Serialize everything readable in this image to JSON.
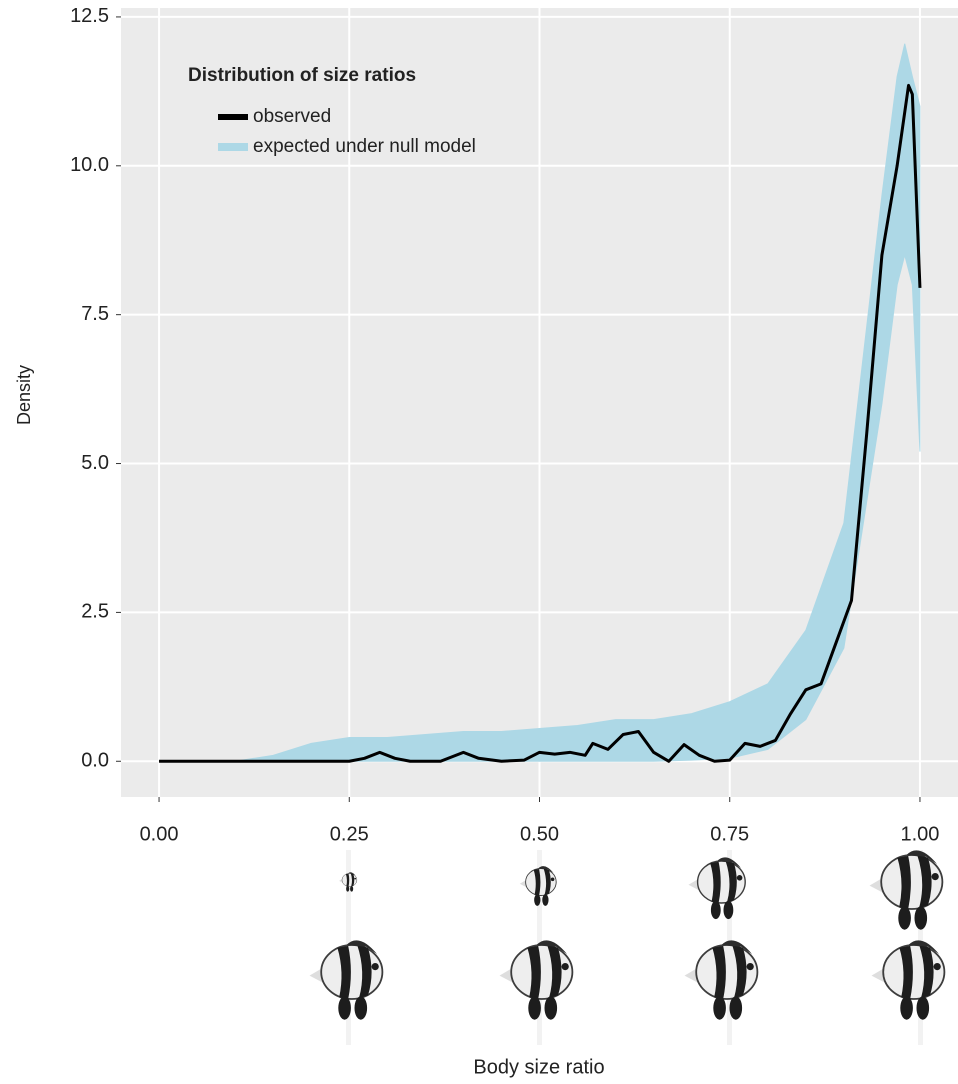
{
  "chart_data": {
    "type": "density",
    "legend_title": "Distribution of size ratios",
    "x_label": "Body size ratio",
    "y_label": "Density",
    "xlim": [
      -0.05,
      1.05
    ],
    "ylim": [
      -0.6,
      12.65
    ],
    "xticks": [
      {
        "value": 0,
        "label": "0.00"
      },
      {
        "value": 0.25,
        "label": "0.25"
      },
      {
        "value": 0.5,
        "label": "0.50"
      },
      {
        "value": 0.75,
        "label": "0.75"
      },
      {
        "value": 1,
        "label": "1.00"
      }
    ],
    "yticks": [
      {
        "value": 0,
        "label": "0.0"
      },
      {
        "value": 2.5,
        "label": "2.5"
      },
      {
        "value": 5,
        "label": "5.0"
      },
      {
        "value": 7.5,
        "label": "7.5"
      },
      {
        "value": 10,
        "label": "10.0"
      },
      {
        "value": 12.5,
        "label": "12.5"
      }
    ],
    "grid": true,
    "series": [
      {
        "name": "expected under null model",
        "color": "#add8e6",
        "x": [
          0.1,
          0.15,
          0.2,
          0.25,
          0.3,
          0.35,
          0.4,
          0.45,
          0.5,
          0.55,
          0.6,
          0.65,
          0.7,
          0.75,
          0.8,
          0.85,
          0.9,
          0.95,
          0.97,
          0.98,
          0.99,
          1.0
        ],
        "upper": [
          0,
          0.1,
          0.3,
          0.4,
          0.4,
          0.45,
          0.5,
          0.5,
          0.55,
          0.6,
          0.7,
          0.7,
          0.8,
          1.0,
          1.3,
          2.2,
          4.0,
          9.5,
          11.5,
          12.05,
          11.5,
          11.0
        ],
        "lower": [
          0,
          0,
          0,
          0,
          0,
          0,
          0,
          0,
          0,
          0,
          0,
          0,
          0.02,
          0.05,
          0.2,
          0.7,
          1.9,
          6.0,
          8.0,
          8.5,
          8.0,
          5.2
        ]
      },
      {
        "name": "observed",
        "color": "#000000",
        "x": [
          0,
          0.1,
          0.2,
          0.25,
          0.27,
          0.29,
          0.31,
          0.33,
          0.37,
          0.4,
          0.42,
          0.45,
          0.48,
          0.5,
          0.52,
          0.54,
          0.56,
          0.57,
          0.59,
          0.61,
          0.63,
          0.65,
          0.67,
          0.69,
          0.71,
          0.73,
          0.75,
          0.77,
          0.79,
          0.81,
          0.83,
          0.85,
          0.87,
          0.89,
          0.91,
          0.93,
          0.95,
          0.97,
          0.985,
          0.99,
          1.0
        ],
        "values": [
          0,
          0,
          0,
          0,
          0.05,
          0.15,
          0.05,
          0,
          0,
          0.15,
          0.05,
          0,
          0.02,
          0.15,
          0.12,
          0.15,
          0.1,
          0.3,
          0.2,
          0.45,
          0.5,
          0.15,
          0,
          0.28,
          0.1,
          0,
          0.02,
          0.3,
          0.25,
          0.35,
          0.8,
          1.2,
          1.3,
          2.0,
          2.7,
          5.5,
          8.5,
          10.0,
          11.35,
          11.2,
          7.95
        ]
      }
    ]
  }
}
